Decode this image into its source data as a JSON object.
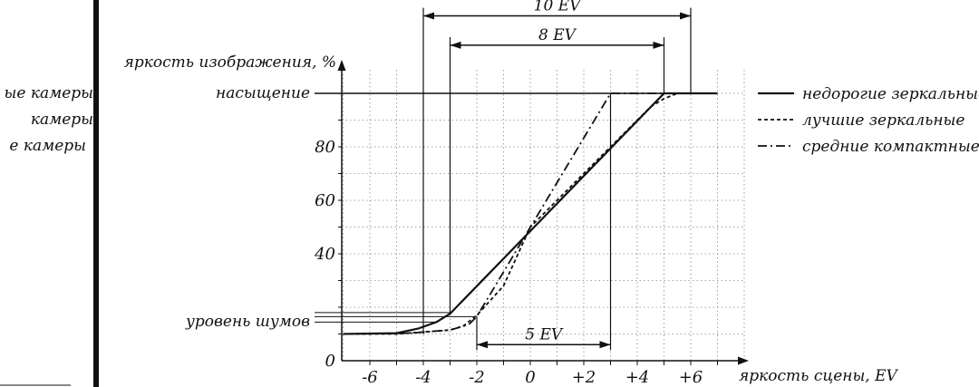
{
  "chart_data": {
    "type": "line",
    "ylabel": "яркость изображения, %",
    "xlabel": "яркость сцены, EV",
    "x_ticks": [
      "-6",
      "-4",
      "-2",
      "0",
      "+2",
      "+4",
      "+6"
    ],
    "y_ticks": [
      "0",
      "40",
      "60",
      "80"
    ],
    "saturation_label": "насыщение",
    "noise_label": "уровень шумов",
    "xlim": [
      -7,
      8
    ],
    "ylim": [
      0,
      110
    ],
    "grid": true,
    "series": [
      {
        "name": "недорогие зеркальные",
        "style": "solid",
        "points": [
          [
            -7,
            10
          ],
          [
            -5,
            10.3
          ],
          [
            -4.2,
            12
          ],
          [
            -3.5,
            14.5
          ],
          [
            -3,
            17.6
          ],
          [
            5,
            100
          ],
          [
            7,
            100
          ]
        ]
      },
      {
        "name": "лучшие зеркальные",
        "style": "dashed",
        "points": [
          [
            -7,
            10
          ],
          [
            -5,
            10
          ],
          [
            -3,
            11.5
          ],
          [
            -2.5,
            13
          ],
          [
            -2,
            17
          ],
          [
            -1,
            28
          ],
          [
            0,
            50
          ],
          [
            3,
            80
          ],
          [
            4.5,
            95
          ],
          [
            5,
            98
          ],
          [
            5.5,
            100
          ],
          [
            7,
            100
          ]
        ]
      },
      {
        "name": "средние компактные",
        "style": "dashdot",
        "points": [
          [
            -7,
            10
          ],
          [
            -4.5,
            10.3
          ],
          [
            -3,
            11.5
          ],
          [
            -2.3,
            13.5
          ],
          [
            -2,
            16.5
          ],
          [
            3,
            100
          ],
          [
            5,
            100
          ]
        ]
      }
    ],
    "saturation_level": 100,
    "noise_levels": [
      18,
      16.5
    ],
    "ranges": [
      {
        "label": "10 EV",
        "from": -4,
        "to": 6,
        "level": 129
      },
      {
        "label": "8 EV",
        "from": -3,
        "to": 5,
        "level": 118
      },
      {
        "label": "5 EV",
        "from": -2,
        "to": 3,
        "level": 6
      }
    ]
  },
  "left_panel": {
    "cut_labels": [
      "ые камеры",
      "камеры",
      "е камеры"
    ]
  }
}
